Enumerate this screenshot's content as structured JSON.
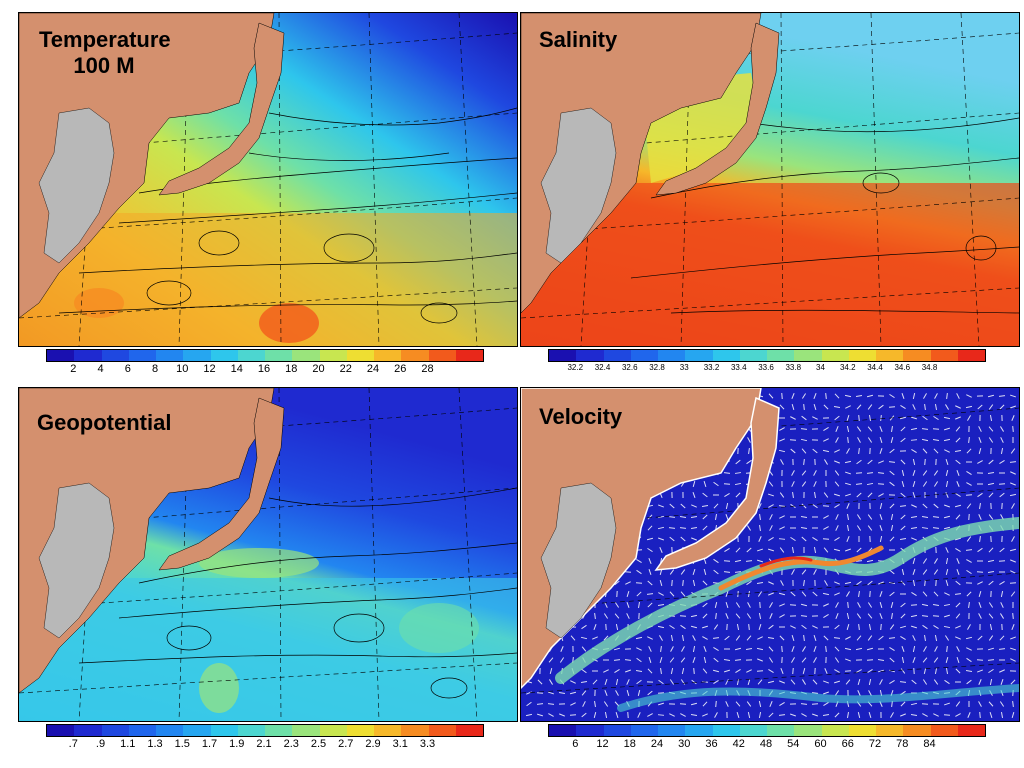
{
  "panels": [
    {
      "id": "temperature",
      "title_line1": "Temperature",
      "title_line2": "100 M",
      "colorbar_labels": [
        "2",
        "4",
        "6",
        "8",
        "10",
        "12",
        "14",
        "16",
        "18",
        "20",
        "22",
        "24",
        "26",
        "28"
      ]
    },
    {
      "id": "salinity",
      "title_line1": "Salinity",
      "colorbar_labels": [
        "32.2",
        "32.4",
        "32.6",
        "32.8",
        "33",
        "33.2",
        "33.4",
        "33.6",
        "33.8",
        "34",
        "34.2",
        "34.4",
        "34.6",
        "34.8"
      ]
    },
    {
      "id": "geopotential",
      "title_line1": "Geopotential",
      "colorbar_labels": [
        ".7",
        ".9",
        "1.1",
        "1.3",
        "1.5",
        "1.7",
        "1.9",
        "2.1",
        "2.3",
        "2.5",
        "2.7",
        "2.9",
        "3.1",
        "3.3"
      ]
    },
    {
      "id": "velocity",
      "title_line1": "Velocity",
      "colorbar_labels": [
        "6",
        "12",
        "18",
        "24",
        "30",
        "36",
        "42",
        "48",
        "54",
        "60",
        "66",
        "72",
        "78",
        "84"
      ]
    }
  ],
  "colors": {
    "land": "#d4906e",
    "land_gray": "#b8b8b8",
    "colorbar": [
      "#1a10b0",
      "#1f2ad0",
      "#1f48e0",
      "#2066ec",
      "#2286f0",
      "#26a6f0",
      "#2ec6ec",
      "#4cd6d0",
      "#6ee0a8",
      "#9ae47c",
      "#c8e650",
      "#eede32",
      "#f6b82a",
      "#f68c22",
      "#f25a1c",
      "#e8281a"
    ]
  }
}
